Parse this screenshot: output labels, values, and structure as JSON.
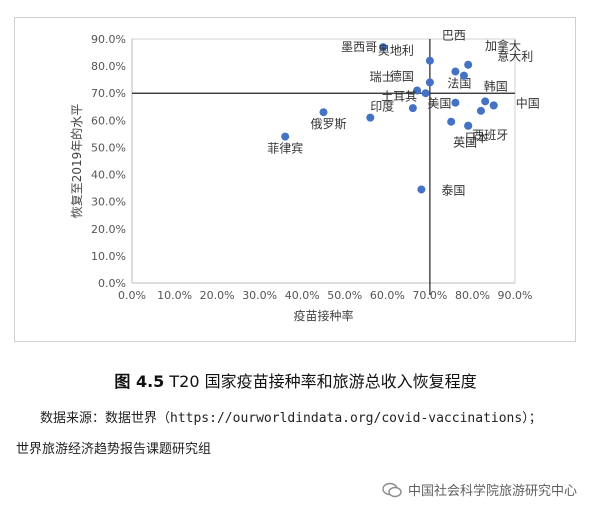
{
  "figure": {
    "caption_num": "图 4.5",
    "caption_text": " T20 国家疫苗接种率和旅游总收入恢复程度",
    "source_line1": "数据来源：数据世界（https://ourworldindata.org/covid-vaccinations）；",
    "source_line2": "世界旅游经济趋势报告课题研究组",
    "watermark": "中国社会科学院旅游研究中心"
  },
  "chart_data": {
    "type": "scatter",
    "xlabel": "疫苗接种率",
    "ylabel": "恢复至2019年的水平",
    "xlim": [
      0,
      90
    ],
    "ylim": [
      0,
      90
    ],
    "x_ticks": [
      "0.0%",
      "10.0%",
      "20.0%",
      "30.0%",
      "40.0%",
      "50.0%",
      "60.0%",
      "70.0%",
      "80.0%",
      "90.0%"
    ],
    "y_ticks": [
      "0.0%",
      "10.0%",
      "20.0%",
      "30.0%",
      "40.0%",
      "50.0%",
      "60.0%",
      "70.0%",
      "80.0%",
      "90.0%"
    ],
    "reference_lines": {
      "x": 70,
      "y": 70
    },
    "point_color": "#4472c4",
    "points": [
      {
        "label": "菲律宾",
        "x": 36.0,
        "y": 54.0
      },
      {
        "label": "俄罗斯",
        "x": 45.0,
        "y": 63.0
      },
      {
        "label": "印度",
        "x": 56.0,
        "y": 61.0
      },
      {
        "label": "墨西哥",
        "x": 59.0,
        "y": 87.0
      },
      {
        "label": "",
        "x": 66.0,
        "y": 64.5
      },
      {
        "label": "土耳其",
        "x": 67.0,
        "y": 71.0
      },
      {
        "label": "瑞士",
        "x": 69.0,
        "y": 70.0
      },
      {
        "label": "德国",
        "x": 70.0,
        "y": 74.0
      },
      {
        "label": "奥地利",
        "x": 70.0,
        "y": 82.0
      },
      {
        "label": "泰国",
        "x": 68.0,
        "y": 34.5
      },
      {
        "label": "英国",
        "x": 75.0,
        "y": 59.5
      },
      {
        "label": "美国",
        "x": 76.0,
        "y": 66.5
      },
      {
        "label": "法国",
        "x": 76.0,
        "y": 78.0
      },
      {
        "label": "巴西",
        "x": 78.0,
        "y": 76.5
      },
      {
        "label": "",
        "x": 79.0,
        "y": 80.5
      },
      {
        "label": "日本",
        "x": 79.0,
        "y": 58.0
      },
      {
        "label": "加拿大",
        "x": 82.0,
        "y": 63.5
      },
      {
        "label": "意大利",
        "x": 83.0,
        "y": 67.0
      },
      {
        "label": "韩国",
        "x": 85.0,
        "y": 65.5
      },
      {
        "label": "中国",
        "x": 85.0,
        "y": 65.5
      },
      {
        "label": "西班牙",
        "x": 79.0,
        "y": 58.0
      }
    ]
  }
}
